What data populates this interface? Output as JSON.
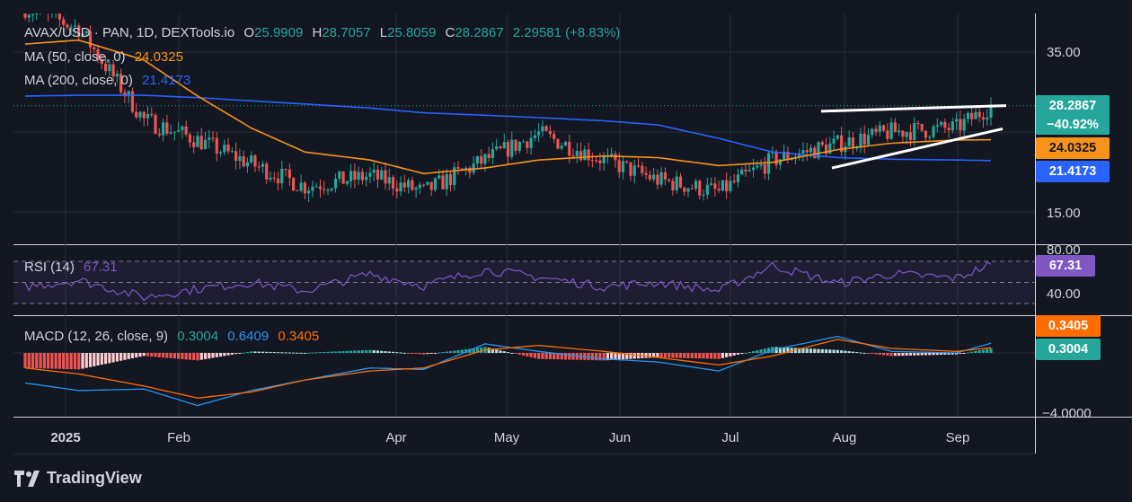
{
  "colors": {
    "background": "#131722",
    "up": "#26a69a",
    "down": "#ef5350",
    "ma50": "#f7931a",
    "ma200": "#2962ff",
    "rsi": "#7e57c2",
    "macd_line": "#2196f3",
    "signal_line": "#ff6d00",
    "trendline": "#ffffff"
  },
  "legend": {
    "symbol": "AVAX/USD · PAN, 1D, DEXTools.io",
    "o_label": "O",
    "o_value": "25.9909",
    "h_label": "H",
    "h_value": "28.7057",
    "l_label": "L",
    "l_value": "25.8059",
    "c_label": "C",
    "c_value": "28.2867",
    "change": "2.29581 (+8.83%)",
    "ma50_label": "MA (50, close, 0)",
    "ma50_value": "24.0325",
    "ma200_label": "MA (200, close, 0)",
    "ma200_value": "21.4173",
    "rsi_label": "RSI (14)",
    "rsi_value": "67.31",
    "macd_label": "MACD (12, 26, close, 9)",
    "macd_hist": "0.3004",
    "macd_line": "0.6409",
    "macd_signal": "0.3405"
  },
  "price_tags": {
    "close": "28.2867",
    "change_pct": "−40.92%",
    "ma50": "24.0325",
    "ma200": "21.4173",
    "rsi": "67.31",
    "signal": "0.3405",
    "hist": "0.3004"
  },
  "axes": {
    "price_ticks": [
      "35.00",
      "15.00"
    ],
    "rsi_ticks": [
      "80.00",
      "40.00"
    ],
    "macd_ticks": [
      "−4.0000"
    ],
    "x_ticks": [
      "2025",
      "Feb",
      "Apr",
      "May",
      "Jun",
      "Jul",
      "Aug",
      "Sep"
    ]
  },
  "brand": "TradingView",
  "chart_data": {
    "type": "line",
    "title": "AVAX/USD · PAN, 1D, DEXTools.io",
    "x": [
      "2025-01-01",
      "2025-01-15",
      "2025-02-01",
      "2025-02-15",
      "2025-03-01",
      "2025-03-15",
      "2025-04-01",
      "2025-04-15",
      "2025-05-01",
      "2025-05-15",
      "2025-06-01",
      "2025-06-15",
      "2025-07-01",
      "2025-07-15",
      "2025-08-01",
      "2025-08-15",
      "2025-09-01",
      "2025-09-10"
    ],
    "series": [
      {
        "name": "AVAX/USD",
        "values": [
          40.5,
          38.0,
          26.5,
          24.0,
          21.0,
          18.2,
          19.5,
          17.5,
          21.5,
          24.8,
          21.5,
          19.0,
          17.5,
          21.5,
          23.5,
          25.0,
          25.5,
          28.29
        ]
      },
      {
        "name": "MA (50, close, 0)",
        "values": [
          36.0,
          36.5,
          34.0,
          29.5,
          25.5,
          22.5,
          21.5,
          19.8,
          20.5,
          21.5,
          22.0,
          21.8,
          20.8,
          21.2,
          22.8,
          23.6,
          24.0,
          24.03
        ]
      },
      {
        "name": "MA (200, close, 0)",
        "values": [
          29.5,
          29.6,
          29.6,
          29.3,
          28.9,
          28.5,
          28.0,
          27.4,
          27.1,
          26.8,
          26.4,
          25.9,
          24.2,
          22.5,
          21.8,
          21.6,
          21.5,
          21.42
        ]
      },
      {
        "name": "RSI (14)",
        "values": [
          46,
          52,
          36,
          44,
          50,
          42,
          58,
          47,
          62,
          55,
          46,
          50,
          42,
          66,
          49,
          58,
          54,
          67.31
        ]
      },
      {
        "name": "MACD",
        "values": [
          -2.0,
          -2.5,
          -2.4,
          -3.5,
          -2.5,
          -1.8,
          -1.0,
          -1.1,
          0.6,
          0.1,
          -0.4,
          -0.6,
          -1.2,
          0.2,
          1.1,
          0.1,
          0.0,
          0.6409
        ]
      },
      {
        "name": "Signal",
        "values": [
          -1.0,
          -1.4,
          -2.2,
          -3.0,
          -2.6,
          -1.8,
          -1.2,
          -1.0,
          0.2,
          0.5,
          0.1,
          -0.3,
          -0.8,
          -0.2,
          0.9,
          0.3,
          0.1,
          0.3405
        ]
      }
    ],
    "ylim": [
      12,
      38
    ],
    "rsi_levels": [
      70,
      50,
      30
    ],
    "xlabel": "",
    "ylabel": ""
  }
}
